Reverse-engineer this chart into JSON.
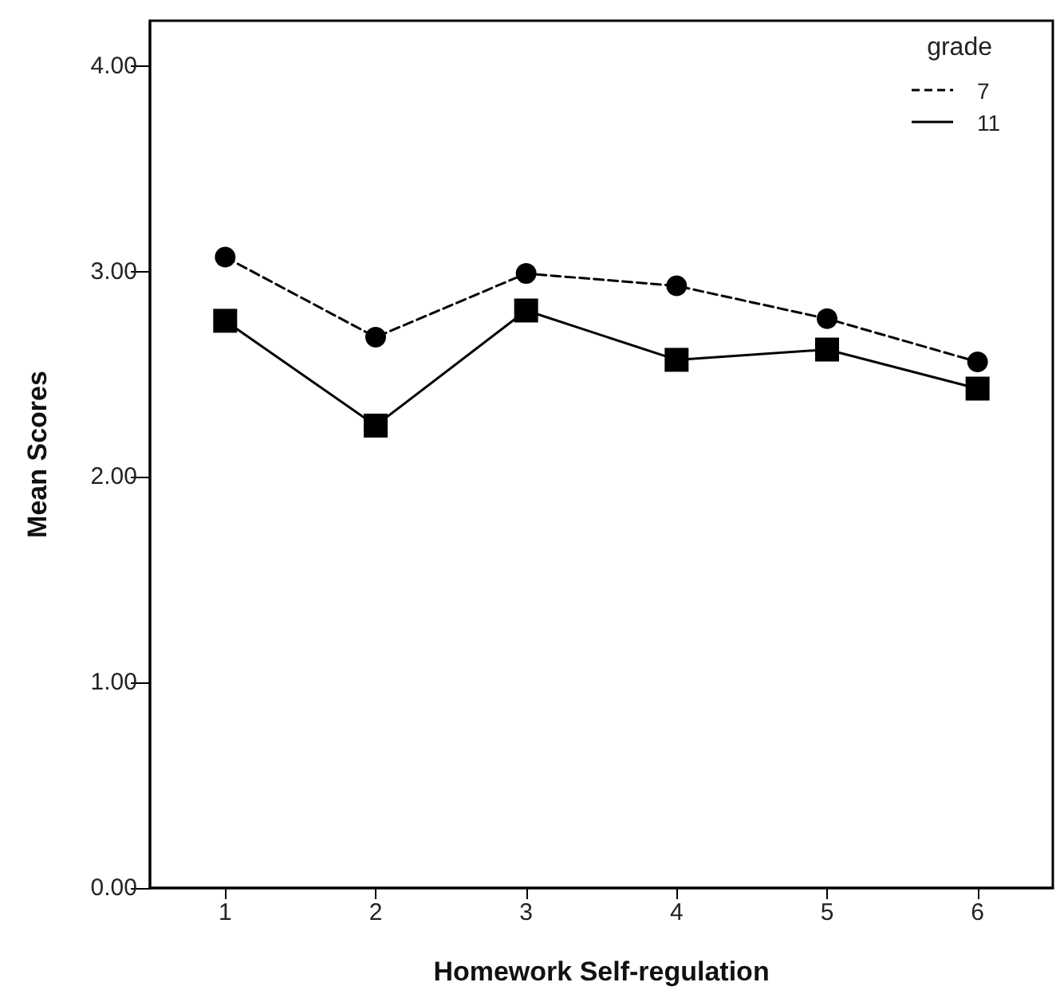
{
  "chart_data": {
    "type": "line",
    "xlabel": "Homework Self-regulation",
    "ylabel": "Mean Scores",
    "categories": [
      "1",
      "2",
      "3",
      "4",
      "5",
      "6"
    ],
    "series": [
      {
        "name": "7",
        "color": "#000000",
        "marker": "circle",
        "line_style": "dashed",
        "values": [
          3.07,
          2.68,
          2.99,
          2.93,
          2.77,
          2.56
        ]
      },
      {
        "name": "11",
        "color": "#000000",
        "marker": "square",
        "line_style": "solid",
        "values": [
          2.76,
          2.25,
          2.81,
          2.57,
          2.62,
          2.43
        ]
      }
    ],
    "ylim": [
      0,
      4.22
    ],
    "yticks": [
      {
        "value": 0,
        "label": "0.00"
      },
      {
        "value": 1,
        "label": "1.00"
      },
      {
        "value": 2,
        "label": "2.00"
      },
      {
        "value": 3,
        "label": "3.00"
      },
      {
        "value": 4,
        "label": "4.00"
      }
    ],
    "legend": "top right",
    "legend_title": "grade",
    "grid": false
  }
}
